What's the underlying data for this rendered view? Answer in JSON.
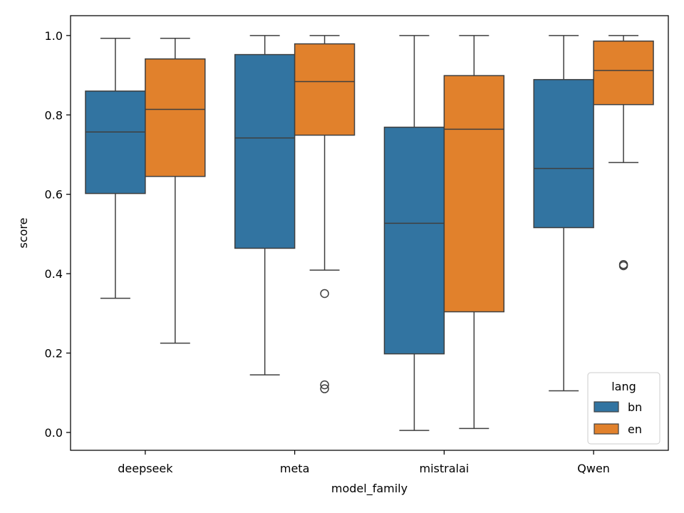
{
  "chart_data": {
    "type": "box",
    "xlabel": "model_family",
    "ylabel": "score",
    "ylim": [
      -0.045,
      1.05
    ],
    "yticks": [
      0.0,
      0.2,
      0.4,
      0.6,
      0.8,
      1.0
    ],
    "ytick_labels": [
      "0.0",
      "0.2",
      "0.4",
      "0.6",
      "0.8",
      "1.0"
    ],
    "categories": [
      "deepseek",
      "meta",
      "mistralai",
      "Qwen"
    ],
    "legend": {
      "title": "lang",
      "position": "lower-right"
    },
    "grid": false,
    "series": [
      {
        "name": "bn",
        "color": "#3274a1",
        "boxes": [
          {
            "whisker_low": 0.338,
            "q1": 0.602,
            "median": 0.757,
            "q3": 0.86,
            "whisker_high": 0.993,
            "outliers": []
          },
          {
            "whisker_low": 0.145,
            "q1": 0.464,
            "median": 0.742,
            "q3": 0.952,
            "whisker_high": 1.0,
            "outliers": []
          },
          {
            "whisker_low": 0.005,
            "q1": 0.198,
            "median": 0.527,
            "q3": 0.769,
            "whisker_high": 1.0,
            "outliers": []
          },
          {
            "whisker_low": 0.105,
            "q1": 0.516,
            "median": 0.665,
            "q3": 0.889,
            "whisker_high": 1.0,
            "outliers": []
          }
        ]
      },
      {
        "name": "en",
        "color": "#e1812c",
        "boxes": [
          {
            "whisker_low": 0.225,
            "q1": 0.645,
            "median": 0.814,
            "q3": 0.941,
            "whisker_high": 0.993,
            "outliers": []
          },
          {
            "whisker_low": 0.409,
            "q1": 0.749,
            "median": 0.884,
            "q3": 0.979,
            "whisker_high": 1.0,
            "outliers": [
              0.35,
              0.12,
              0.11
            ]
          },
          {
            "whisker_low": 0.01,
            "q1": 0.304,
            "median": 0.764,
            "q3": 0.899,
            "whisker_high": 1.0,
            "outliers": []
          },
          {
            "whisker_low": 0.68,
            "q1": 0.826,
            "median": 0.912,
            "q3": 0.986,
            "whisker_high": 1.0,
            "outliers": [
              0.423,
              0.42
            ]
          }
        ]
      }
    ]
  }
}
